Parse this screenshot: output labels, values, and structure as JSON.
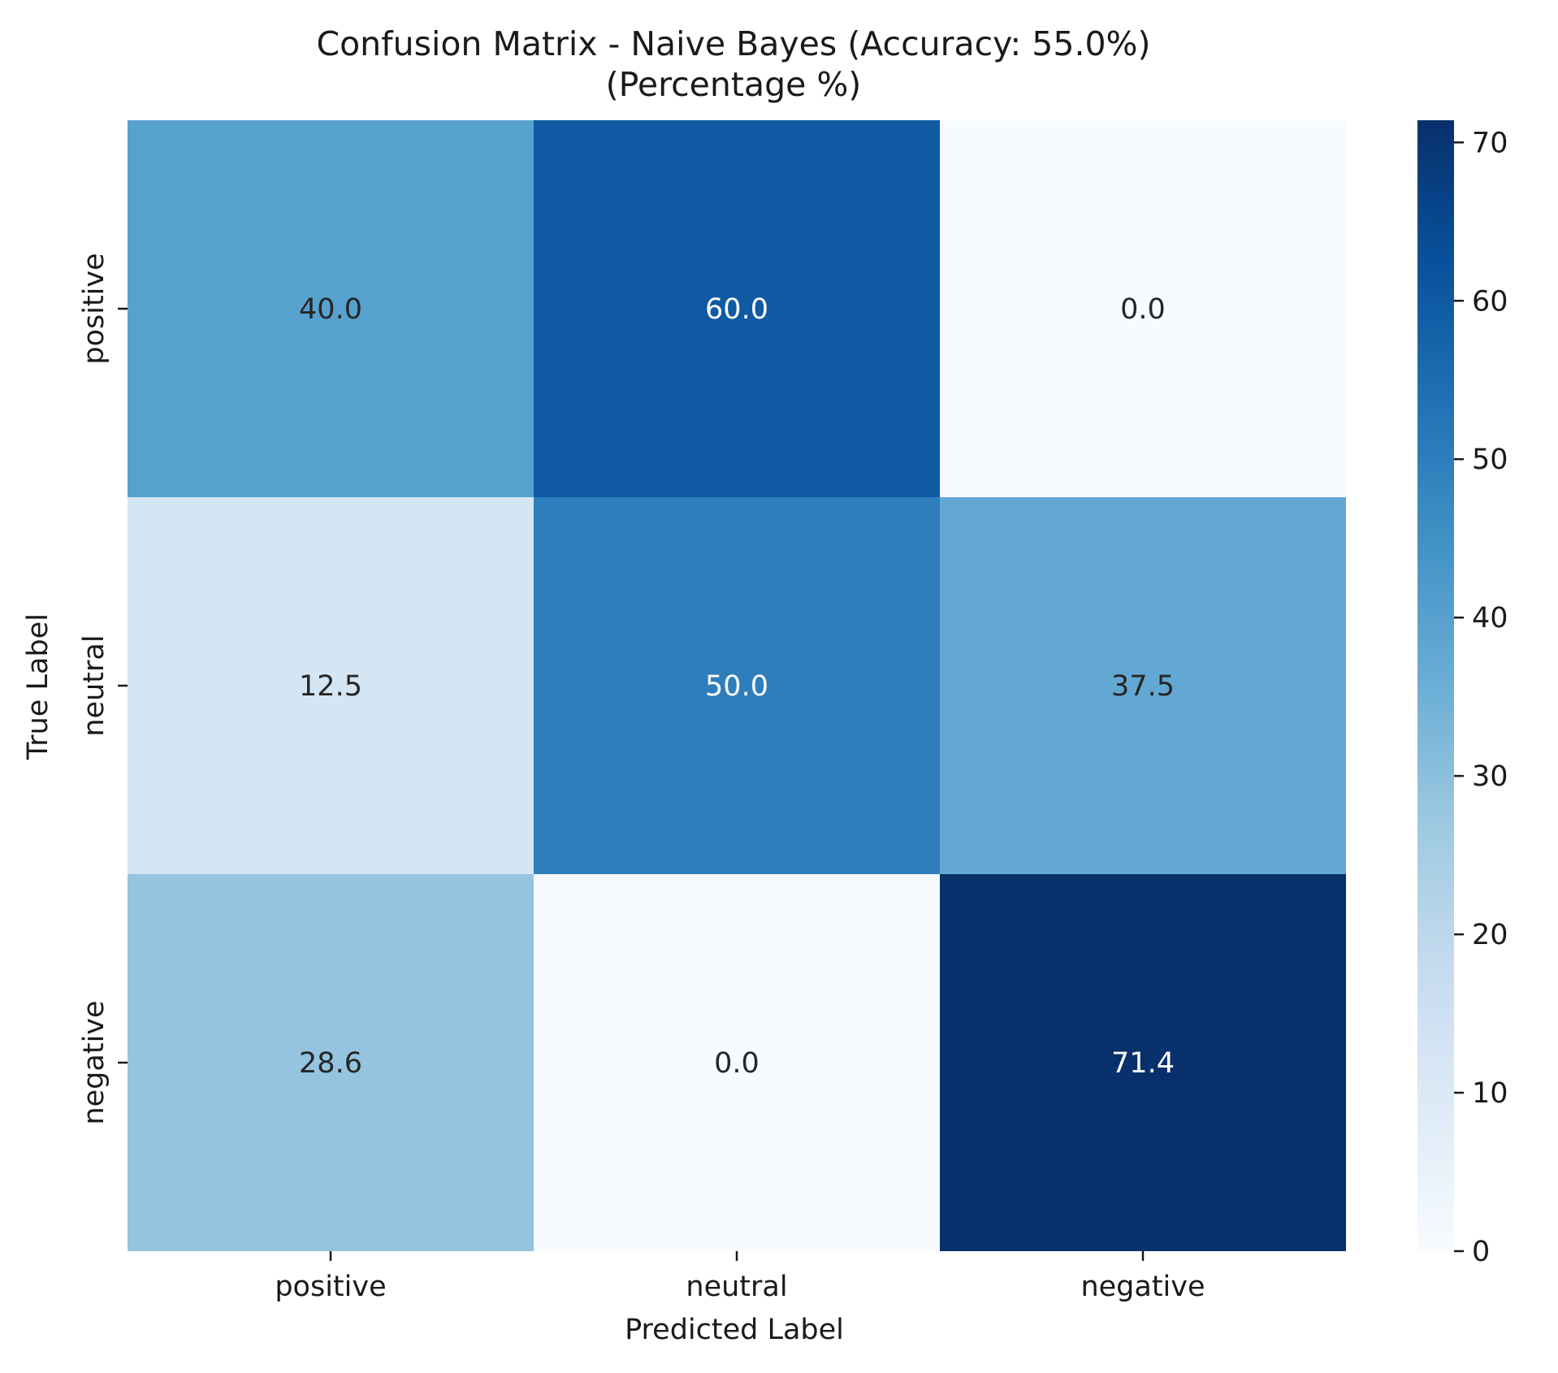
{
  "chart_data": {
    "type": "heatmap",
    "title": "Confusion Matrix - Naive Bayes (Accuracy: 55.0%)",
    "subtitle": "(Percentage %)",
    "xlabel": "Predicted Label",
    "ylabel": "True Label",
    "x_categories": [
      "positive",
      "neutral",
      "negative"
    ],
    "y_categories": [
      "positive",
      "neutral",
      "negative"
    ],
    "values": [
      [
        40.0,
        60.0,
        0.0
      ],
      [
        12.5,
        50.0,
        37.5
      ],
      [
        28.6,
        0.0,
        71.4
      ]
    ],
    "cell_labels": [
      [
        "40.0",
        "60.0",
        "0.0"
      ],
      [
        "12.5",
        "50.0",
        "37.5"
      ],
      [
        "28.6",
        "0.0",
        "71.4"
      ]
    ],
    "colorbar": {
      "range": [
        0,
        71.4
      ],
      "ticks": [
        0,
        10,
        20,
        30,
        40,
        50,
        60,
        70
      ],
      "colormap": "Blues"
    },
    "colors": {
      "text_light": "#ffffff",
      "text_dark": "#262626"
    },
    "grid": false
  }
}
